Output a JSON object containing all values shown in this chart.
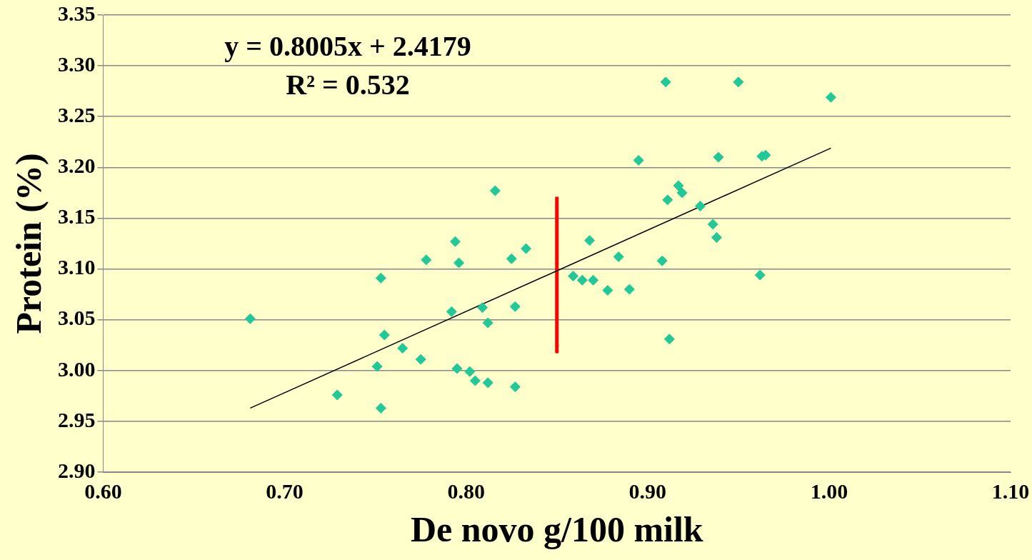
{
  "chart_data": {
    "type": "scatter",
    "xlabel": "De novo g/100 milk",
    "ylabel": "Protein (%)",
    "annotations": [
      "y = 0.8005x + 2.4179",
      "R² = 0.532"
    ],
    "series": [
      {
        "type": "scatter",
        "color": "#20c997",
        "marker": "diamond",
        "x": [
          0.681,
          0.729,
          0.753,
          0.751,
          0.753,
          0.755,
          0.765,
          0.775,
          0.778,
          0.794,
          0.796,
          0.792,
          0.795,
          0.802,
          0.805,
          0.809,
          0.812,
          0.812,
          0.816,
          0.825,
          0.827,
          0.827,
          0.833,
          0.859,
          0.864,
          0.87,
          0.868,
          0.878,
          0.884,
          0.89,
          0.895,
          0.908,
          0.91,
          0.911,
          0.912,
          0.917,
          0.919,
          0.929,
          0.936,
          0.938,
          0.939,
          0.95,
          0.962,
          0.963,
          0.965,
          1.001
        ],
        "values": [
          3.051,
          2.976,
          3.091,
          3.004,
          2.963,
          3.035,
          3.022,
          3.011,
          3.109,
          3.127,
          3.106,
          3.058,
          3.002,
          2.999,
          2.99,
          3.062,
          2.988,
          3.047,
          3.177,
          3.11,
          3.063,
          2.984,
          3.12,
          3.093,
          3.089,
          3.089,
          3.128,
          3.079,
          3.112,
          3.08,
          3.207,
          3.108,
          3.284,
          3.168,
          3.031,
          3.182,
          3.175,
          3.162,
          3.144,
          3.131,
          3.21,
          3.284,
          3.094,
          3.211,
          3.212,
          3.269
        ]
      },
      {
        "type": "line",
        "color": "#000000",
        "x": [
          0.681,
          1.001
        ],
        "values": [
          2.963,
          3.219
        ]
      },
      {
        "type": "line",
        "color": "#ff0000",
        "x": [
          0.85,
          0.85
        ],
        "values": [
          3.017,
          3.171
        ]
      }
    ],
    "xlim": [
      0.6,
      1.1
    ],
    "xticks": [
      {
        "value": 0.6,
        "label": "0.60"
      },
      {
        "value": 0.7,
        "label": "0.70"
      },
      {
        "value": 0.8,
        "label": "0.80"
      },
      {
        "value": 0.9,
        "label": "0.90"
      },
      {
        "value": 1.0,
        "label": "1.00"
      },
      {
        "value": 1.1,
        "label": "1.10"
      }
    ],
    "ylim": [
      2.9,
      3.35
    ],
    "yticks": [
      {
        "value": 2.9,
        "label": "2.90"
      },
      {
        "value": 2.95,
        "label": "2.95"
      },
      {
        "value": 3.0,
        "label": "3.00"
      },
      {
        "value": 3.05,
        "label": "3.05"
      },
      {
        "value": 3.1,
        "label": "3.10"
      },
      {
        "value": 3.15,
        "label": "3.15"
      },
      {
        "value": 3.2,
        "label": "3.20"
      },
      {
        "value": 3.25,
        "label": "3.25"
      },
      {
        "value": 3.3,
        "label": "3.30"
      },
      {
        "value": 3.35,
        "label": "3.35"
      }
    ],
    "grid": "y",
    "legend": false
  }
}
